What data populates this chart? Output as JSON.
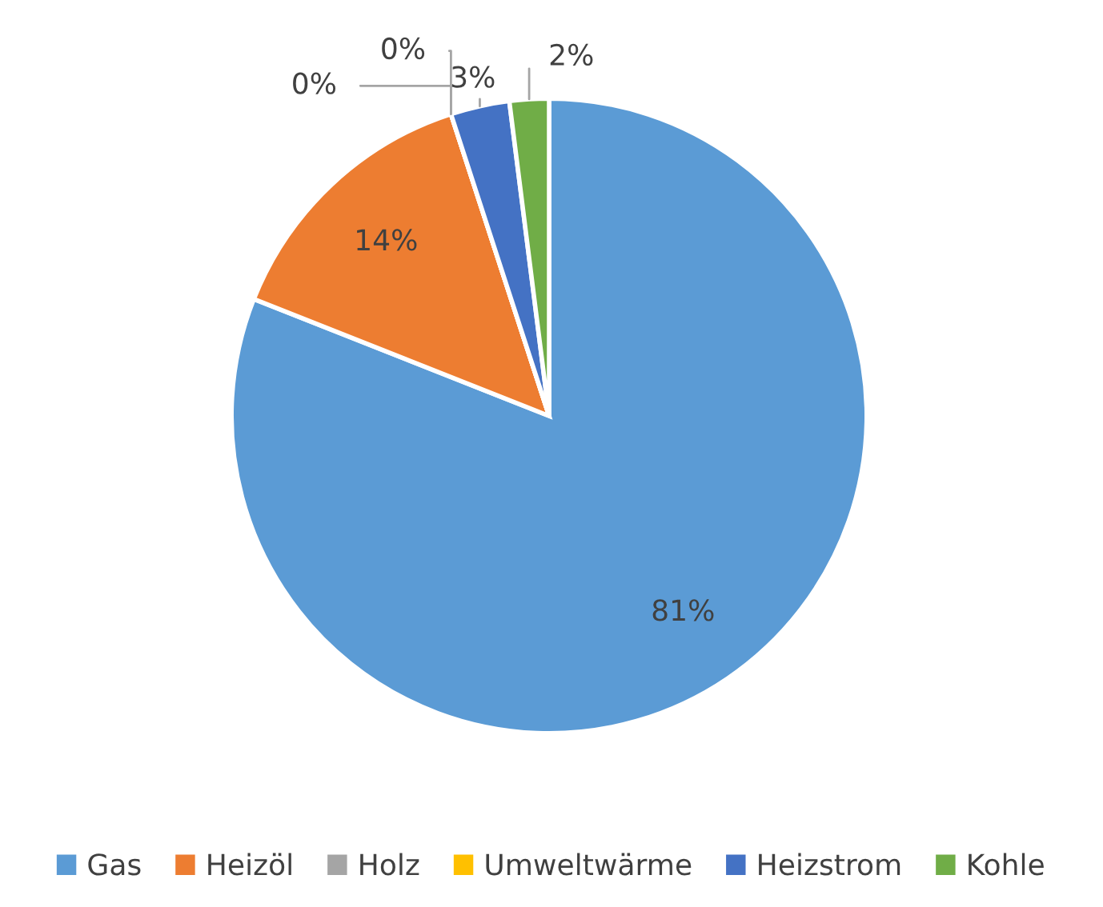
{
  "chart_data": {
    "type": "pie",
    "categories": [
      "Gas",
      "Heizöl",
      "Holz",
      "Umweltwärme",
      "Heizstrom",
      "Kohle"
    ],
    "values": [
      81,
      14,
      0,
      0,
      3,
      2
    ],
    "colors": [
      "#5b9bd5",
      "#ed7d31",
      "#a5a5a5",
      "#ffc000",
      "#4472c4",
      "#70ad47"
    ],
    "value_labels": [
      "81%",
      "14%",
      "0%",
      "0%",
      "3%",
      "2%"
    ],
    "legend": "bottom"
  }
}
